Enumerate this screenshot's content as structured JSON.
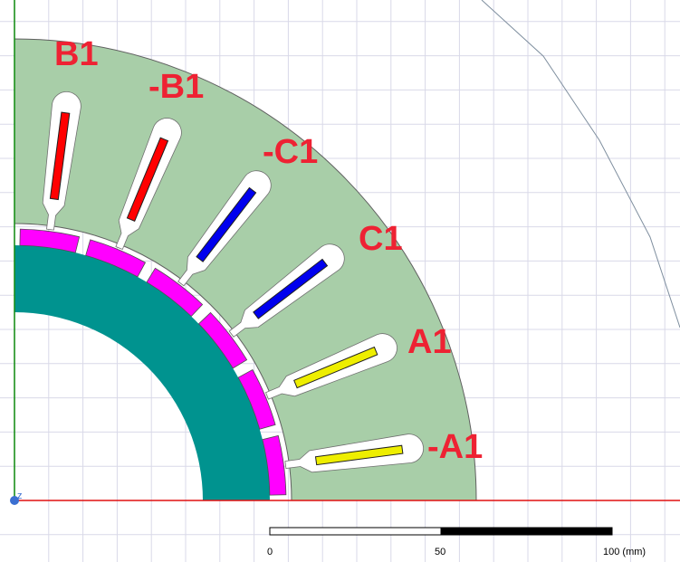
{
  "viewport": {
    "colors": {
      "background": "#ffffff",
      "grid": "#d9d9e8",
      "x_axis": "#e01010",
      "y_axis": "#1a8f1a",
      "origin_marker": "#3b6fd1",
      "boundary": "#7f8f9f"
    }
  },
  "motor": {
    "parts": {
      "stator": {
        "color": "#a8cea8"
      },
      "rotor_core": {
        "color": "#00938f"
      },
      "slot_opening": {
        "color": "#ffffff"
      }
    },
    "magnets": {
      "count": 6,
      "color": "#ff00ff"
    },
    "slots": [
      {
        "phase_label": "B1",
        "color": "#ff0000"
      },
      {
        "phase_label": "-B1",
        "color": "#ff0000"
      },
      {
        "phase_label": "-C1",
        "color": "#0000ee"
      },
      {
        "phase_label": "C1",
        "color": "#0000ee"
      },
      {
        "phase_label": "A1",
        "color": "#eeee00"
      },
      {
        "phase_label": "-A1",
        "color": "#eeee00"
      }
    ],
    "label_color": "#ee2233"
  },
  "scale_bar": {
    "labels": [
      "0",
      "50",
      "100 (mm)"
    ]
  }
}
